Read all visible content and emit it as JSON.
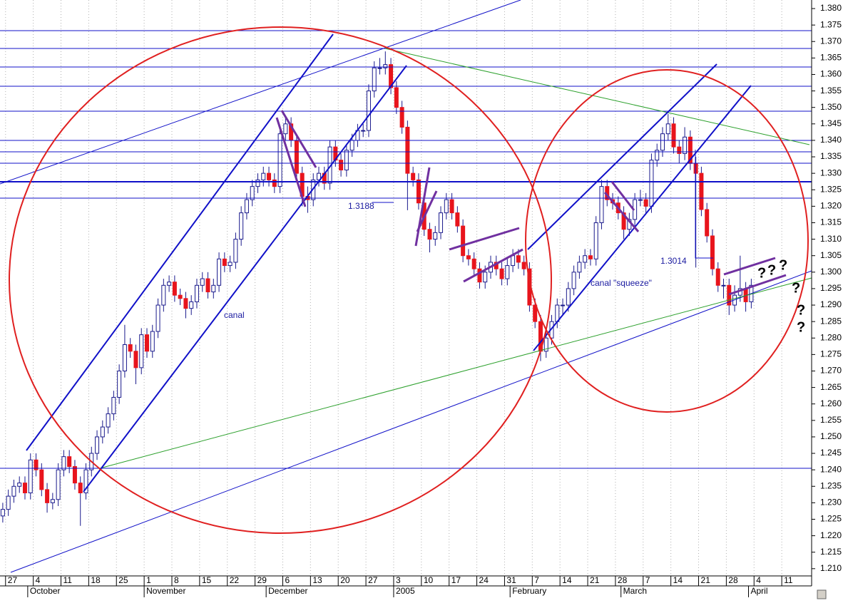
{
  "chart_data": {
    "type": "candlestick",
    "categories": [
      null,
      "27",
      null,
      null,
      null,
      null,
      "4",
      null,
      null,
      null,
      null,
      "11",
      null,
      null,
      null,
      null,
      "18",
      null,
      null,
      null,
      null,
      "25",
      null,
      null,
      null,
      null,
      "1",
      null,
      null,
      null,
      null,
      "8",
      null,
      null,
      null,
      null,
      "15",
      null,
      null,
      null,
      null,
      "22",
      null,
      null,
      null,
      null,
      "29",
      null,
      null,
      null,
      null,
      "6",
      null,
      null,
      null,
      null,
      "13",
      null,
      null,
      null,
      null,
      "20",
      null,
      null,
      null,
      null,
      "27",
      null,
      null,
      null,
      null,
      "3",
      null,
      null,
      null,
      null,
      "10",
      null,
      null,
      null,
      null,
      "17",
      null,
      null,
      null,
      null,
      "24",
      null,
      null,
      null,
      null,
      "31",
      null,
      null,
      null,
      null,
      "7",
      null,
      null,
      null,
      null,
      "14",
      null,
      null,
      null,
      null,
      "21",
      null,
      null,
      null,
      null,
      "28",
      null,
      null,
      null,
      null,
      "7",
      null,
      null,
      null,
      null,
      "14",
      null,
      null,
      null,
      null,
      "21",
      null,
      null,
      null,
      null,
      "28",
      null,
      null,
      null,
      null,
      "4",
      null,
      null,
      null,
      null,
      "11",
      null,
      null,
      null,
      null
    ],
    "month_row": [
      null,
      null,
      null,
      null,
      null,
      "October",
      null,
      null,
      null,
      null,
      null,
      null,
      null,
      null,
      null,
      null,
      null,
      null,
      null,
      null,
      null,
      null,
      null,
      null,
      null,
      null,
      "November",
      null,
      null,
      null,
      null,
      null,
      null,
      null,
      null,
      null,
      null,
      null,
      null,
      null,
      null,
      null,
      null,
      null,
      null,
      null,
      null,
      null,
      "December",
      null,
      null,
      null,
      null,
      null,
      null,
      null,
      null,
      null,
      null,
      null,
      null,
      null,
      null,
      null,
      null,
      null,
      null,
      null,
      null,
      null,
      null,
      "2005",
      null,
      null,
      null,
      null,
      null,
      null,
      null,
      null,
      null,
      null,
      null,
      null,
      null,
      null,
      null,
      null,
      null,
      null,
      null,
      null,
      "February",
      null,
      null,
      null,
      null,
      null,
      null,
      null,
      null,
      null,
      null,
      null,
      null,
      null,
      null,
      null,
      null,
      null,
      null,
      null,
      "March",
      null,
      null,
      null,
      null,
      null,
      null,
      null,
      null,
      null,
      null,
      null,
      null,
      null,
      null,
      null,
      null,
      null,
      null,
      null,
      null,
      null,
      null,
      "April",
      null,
      null,
      null,
      null,
      null,
      null,
      null,
      null,
      null,
      null
    ],
    "candles": [
      [
        1.226,
        1.23,
        1.224,
        1.228
      ],
      [
        1.228,
        1.234,
        1.226,
        1.232
      ],
      [
        1.232,
        1.237,
        1.23,
        1.235
      ],
      [
        1.235,
        1.238,
        1.233,
        1.236
      ],
      [
        1.236,
        1.238,
        1.231,
        1.233
      ],
      [
        1.233,
        1.245,
        1.231,
        1.243
      ],
      [
        1.243,
        1.245,
        1.238,
        1.24
      ],
      [
        1.24,
        1.242,
        1.232,
        1.234
      ],
      [
        1.234,
        1.236,
        1.227,
        1.23
      ],
      [
        1.23,
        1.233,
        1.228,
        1.231
      ],
      [
        1.231,
        1.242,
        1.229,
        1.24
      ],
      [
        1.24,
        1.246,
        1.238,
        1.244
      ],
      [
        1.244,
        1.246,
        1.239,
        1.241
      ],
      [
        1.241,
        1.243,
        1.234,
        1.236
      ],
      [
        1.236,
        1.238,
        1.223,
        1.233
      ],
      [
        1.233,
        1.242,
        1.231,
        1.24
      ],
      [
        1.24,
        1.247,
        1.238,
        1.245
      ],
      [
        1.245,
        1.252,
        1.243,
        1.25
      ],
      [
        1.25,
        1.255,
        1.248,
        1.253
      ],
      [
        1.253,
        1.259,
        1.251,
        1.257
      ],
      [
        1.257,
        1.264,
        1.255,
        1.262
      ],
      [
        1.262,
        1.272,
        1.26,
        1.27
      ],
      [
        1.27,
        1.284,
        1.268,
        1.278
      ],
      [
        1.278,
        1.28,
        1.274,
        1.276
      ],
      [
        1.276,
        1.278,
        1.266,
        1.271
      ],
      [
        1.271,
        1.283,
        1.269,
        1.281
      ],
      [
        1.281,
        1.283,
        1.274,
        1.276
      ],
      [
        1.276,
        1.284,
        1.274,
        1.282
      ],
      [
        1.282,
        1.292,
        1.28,
        1.29
      ],
      [
        1.29,
        1.298,
        1.288,
        1.296
      ],
      [
        1.296,
        1.299,
        1.294,
        1.297
      ],
      [
        1.297,
        1.299,
        1.291,
        1.293
      ],
      [
        1.293,
        1.295,
        1.29,
        1.292
      ],
      [
        1.292,
        1.294,
        1.286,
        1.289
      ],
      [
        1.289,
        1.293,
        1.287,
        1.291
      ],
      [
        1.291,
        1.298,
        1.289,
        1.296
      ],
      [
        1.296,
        1.3,
        1.294,
        1.298
      ],
      [
        1.298,
        1.3,
        1.292,
        1.294
      ],
      [
        1.294,
        1.298,
        1.292,
        1.296
      ],
      [
        1.296,
        1.306,
        1.294,
        1.304
      ],
      [
        1.304,
        1.306,
        1.3,
        1.302
      ],
      [
        1.302,
        1.305,
        1.3,
        1.303
      ],
      [
        1.303,
        1.312,
        1.301,
        1.31
      ],
      [
        1.31,
        1.32,
        1.308,
        1.318
      ],
      [
        1.318,
        1.324,
        1.316,
        1.322
      ],
      [
        1.322,
        1.328,
        1.32,
        1.326
      ],
      [
        1.326,
        1.33,
        1.324,
        1.328
      ],
      [
        1.328,
        1.332,
        1.326,
        1.33
      ],
      [
        1.33,
        1.332,
        1.326,
        1.328
      ],
      [
        1.328,
        1.33,
        1.324,
        1.326
      ],
      [
        1.326,
        1.344,
        1.324,
        1.342
      ],
      [
        1.342,
        1.347,
        1.34,
        1.345
      ],
      [
        1.345,
        1.347,
        1.338,
        1.34
      ],
      [
        1.34,
        1.342,
        1.328,
        1.33
      ],
      [
        1.33,
        1.332,
        1.32,
        1.323
      ],
      [
        1.323,
        1.326,
        1.318,
        1.322
      ],
      [
        1.322,
        1.33,
        1.32,
        1.328
      ],
      [
        1.328,
        1.332,
        1.326,
        1.33
      ],
      [
        1.33,
        1.332,
        1.325,
        1.327
      ],
      [
        1.327,
        1.34,
        1.325,
        1.338
      ],
      [
        1.338,
        1.34,
        1.332,
        1.334
      ],
      [
        1.334,
        1.336,
        1.329,
        1.331
      ],
      [
        1.331,
        1.339,
        1.329,
        1.337
      ],
      [
        1.337,
        1.342,
        1.335,
        1.34
      ],
      [
        1.34,
        1.345,
        1.338,
        1.343
      ],
      [
        1.343,
        1.345,
        1.341,
        1.343
      ],
      [
        1.343,
        1.357,
        1.341,
        1.355
      ],
      [
        1.355,
        1.364,
        1.353,
        1.362
      ],
      [
        1.362,
        1.365,
        1.36,
        1.362
      ],
      [
        1.362,
        1.367,
        1.36,
        1.363
      ],
      [
        1.363,
        1.365,
        1.354,
        1.356
      ],
      [
        1.356,
        1.358,
        1.348,
        1.35
      ],
      [
        1.35,
        1.352,
        1.342,
        1.344
      ],
      [
        1.344,
        1.346,
        1.3188,
        1.33
      ],
      [
        1.33,
        1.332,
        1.326,
        1.328
      ],
      [
        1.328,
        1.33,
        1.319,
        1.321
      ],
      [
        1.321,
        1.323,
        1.311,
        1.313
      ],
      [
        1.313,
        1.315,
        1.306,
        1.31
      ],
      [
        1.31,
        1.314,
        1.308,
        1.312
      ],
      [
        1.312,
        1.32,
        1.31,
        1.318
      ],
      [
        1.318,
        1.324,
        1.316,
        1.322
      ],
      [
        1.322,
        1.324,
        1.316,
        1.318
      ],
      [
        1.318,
        1.32,
        1.312,
        1.314
      ],
      [
        1.314,
        1.316,
        1.303,
        1.305
      ],
      [
        1.305,
        1.307,
        1.302,
        1.304
      ],
      [
        1.304,
        1.306,
        1.299,
        1.301
      ],
      [
        1.301,
        1.303,
        1.295,
        1.297
      ],
      [
        1.297,
        1.302,
        1.295,
        1.3
      ],
      [
        1.3,
        1.305,
        1.298,
        1.303
      ],
      [
        1.303,
        1.305,
        1.299,
        1.301
      ],
      [
        1.301,
        1.303,
        1.296,
        1.298
      ],
      [
        1.298,
        1.304,
        1.296,
        1.302
      ],
      [
        1.302,
        1.307,
        1.3,
        1.305
      ],
      [
        1.305,
        1.307,
        1.301,
        1.303
      ],
      [
        1.303,
        1.305,
        1.299,
        1.301
      ],
      [
        1.301,
        1.303,
        1.288,
        1.29
      ],
      [
        1.29,
        1.292,
        1.283,
        1.285
      ],
      [
        1.285,
        1.287,
        1.273,
        1.276
      ],
      [
        1.276,
        1.282,
        1.274,
        1.28
      ],
      [
        1.28,
        1.287,
        1.278,
        1.285
      ],
      [
        1.285,
        1.292,
        1.283,
        1.29
      ],
      [
        1.29,
        1.292,
        1.287,
        1.29
      ],
      [
        1.29,
        1.297,
        1.288,
        1.295
      ],
      [
        1.295,
        1.302,
        1.293,
        1.3
      ],
      [
        1.3,
        1.305,
        1.298,
        1.303
      ],
      [
        1.303,
        1.307,
        1.301,
        1.305
      ],
      [
        1.305,
        1.307,
        1.302,
        1.304
      ],
      [
        1.304,
        1.317,
        1.302,
        1.315
      ],
      [
        1.315,
        1.328,
        1.313,
        1.326
      ],
      [
        1.326,
        1.328,
        1.32,
        1.322
      ],
      [
        1.322,
        1.324,
        1.319,
        1.321
      ],
      [
        1.321,
        1.323,
        1.316,
        1.318
      ],
      [
        1.318,
        1.32,
        1.31,
        1.313
      ],
      [
        1.313,
        1.318,
        1.311,
        1.316
      ],
      [
        1.316,
        1.324,
        1.314,
        1.322
      ],
      [
        1.322,
        1.325,
        1.32,
        1.322
      ],
      [
        1.322,
        1.324,
        1.318,
        1.32
      ],
      [
        1.32,
        1.336,
        1.318,
        1.334
      ],
      [
        1.334,
        1.339,
        1.332,
        1.337
      ],
      [
        1.337,
        1.344,
        1.335,
        1.342
      ],
      [
        1.342,
        1.348,
        1.34,
        1.345
      ],
      [
        1.345,
        1.347,
        1.336,
        1.338
      ],
      [
        1.338,
        1.34,
        1.333,
        1.336
      ],
      [
        1.336,
        1.344,
        1.334,
        1.341
      ],
      [
        1.341,
        1.343,
        1.331,
        1.333
      ],
      [
        1.333,
        1.335,
        1.3014,
        1.33
      ],
      [
        1.33,
        1.332,
        1.317,
        1.319
      ],
      [
        1.319,
        1.321,
        1.309,
        1.311
      ],
      [
        1.311,
        1.313,
        1.299,
        1.301
      ],
      [
        1.301,
        1.303,
        1.294,
        1.296
      ],
      [
        1.296,
        1.298,
        1.292,
        1.296
      ],
      [
        1.296,
        1.298,
        1.287,
        1.29
      ],
      [
        1.29,
        1.296,
        1.288,
        1.293
      ],
      [
        1.293,
        1.305,
        1.291,
        1.295
      ],
      [
        1.295,
        1.297,
        1.288,
        1.291
      ],
      [
        1.291,
        1.298,
        1.289,
        1.296
      ],
      null,
      null,
      null,
      null,
      null,
      null,
      null,
      null,
      null,
      null
    ],
    "up_color": "#ffffff",
    "down_color": "#e8141c",
    "outline_color": "#1a1a8c",
    "ylim": [
      1.2078,
      1.3826
    ],
    "yticks": [
      {
        "value": 1.38,
        "label": "1.380"
      },
      {
        "value": 1.375,
        "label": "1.375"
      },
      {
        "value": 1.37,
        "label": "1.370"
      },
      {
        "value": 1.365,
        "label": "1.365"
      },
      {
        "value": 1.36,
        "label": "1.360"
      },
      {
        "value": 1.355,
        "label": "1.355"
      },
      {
        "value": 1.35,
        "label": "1.350"
      },
      {
        "value": 1.345,
        "label": "1.345"
      },
      {
        "value": 1.34,
        "label": "1.340"
      },
      {
        "value": 1.335,
        "label": "1.335"
      },
      {
        "value": 1.33,
        "label": "1.330"
      },
      {
        "value": 1.325,
        "label": "1.325"
      },
      {
        "value": 1.32,
        "label": "1.320"
      },
      {
        "value": 1.315,
        "label": "1.315"
      },
      {
        "value": 1.31,
        "label": "1.310"
      },
      {
        "value": 1.305,
        "label": "1.305"
      },
      {
        "value": 1.3,
        "label": "1.300"
      },
      {
        "value": 1.295,
        "label": "1.295"
      },
      {
        "value": 1.29,
        "label": "1.290"
      },
      {
        "value": 1.285,
        "label": "1.285"
      },
      {
        "value": 1.28,
        "label": "1.280"
      },
      {
        "value": 1.275,
        "label": "1.275"
      },
      {
        "value": 1.27,
        "label": "1.270"
      },
      {
        "value": 1.265,
        "label": "1.265"
      },
      {
        "value": 1.26,
        "label": "1.260"
      },
      {
        "value": 1.255,
        "label": "1.255"
      },
      {
        "value": 1.25,
        "label": "1.250"
      },
      {
        "value": 1.245,
        "label": "1.245"
      },
      {
        "value": 1.24,
        "label": "1.240"
      },
      {
        "value": 1.235,
        "label": "1.235"
      },
      {
        "value": 1.23,
        "label": "1.230"
      },
      {
        "value": 1.225,
        "label": "1.225"
      },
      {
        "value": 1.22,
        "label": "1.220"
      },
      {
        "value": 1.215,
        "label": "1.215"
      },
      {
        "value": 1.21,
        "label": "1.210"
      }
    ],
    "annotations": [
      "canal",
      "canal \"squeeze\"",
      "1.3188",
      "1.3014",
      "?",
      "?",
      "?",
      "?",
      "?",
      "?"
    ]
  }
}
